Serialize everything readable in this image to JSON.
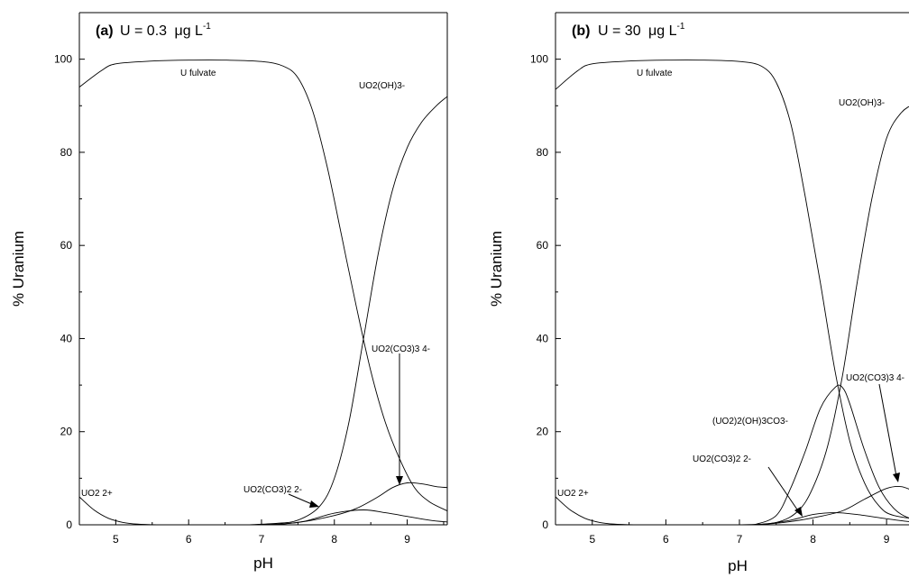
{
  "chart_data": [
    {
      "type": "line",
      "title": "(a)",
      "title_formula_text": "U = 0.3",
      "title_formula_unit_mu": "μ",
      "title_formula_unit_rest": "g L",
      "title_formula_superscript": "-1",
      "xlabel": "pH",
      "ylabel": "% Uranium",
      "xlim": [
        4.5,
        9.55
      ],
      "ylim": [
        0,
        110
      ],
      "x_ticks": [
        5,
        6,
        7,
        8,
        9
      ],
      "y_ticks": [
        0,
        20,
        40,
        60,
        80,
        100
      ],
      "series": [
        {
          "name": "U fulvate",
          "points": [
            [
              4.5,
              94
            ],
            [
              4.8,
              97.5
            ],
            [
              5,
              99
            ],
            [
              5.5,
              99.6
            ],
            [
              6,
              99.8
            ],
            [
              6.5,
              99.8
            ],
            [
              7,
              99.5
            ],
            [
              7.3,
              98.5
            ],
            [
              7.5,
              96
            ],
            [
              7.7,
              89
            ],
            [
              7.9,
              77
            ],
            [
              8.1,
              62
            ],
            [
              8.3,
              47
            ],
            [
              8.5,
              33
            ],
            [
              8.7,
              22
            ],
            [
              8.9,
              14
            ],
            [
              9.1,
              8
            ],
            [
              9.3,
              5
            ],
            [
              9.55,
              3
            ]
          ]
        },
        {
          "name": "UO2(OH)3-",
          "points": [
            [
              6.8,
              0
            ],
            [
              7.2,
              0.3
            ],
            [
              7.5,
              1
            ],
            [
              7.8,
              4
            ],
            [
              8.0,
              10
            ],
            [
              8.2,
              22
            ],
            [
              8.4,
              40
            ],
            [
              8.6,
              58
            ],
            [
              8.8,
              72
            ],
            [
              9.0,
              81
            ],
            [
              9.2,
              86.5
            ],
            [
              9.4,
              90
            ],
            [
              9.55,
              92
            ]
          ]
        },
        {
          "name": "UO2(CO3)3 4-",
          "points": [
            [
              7.0,
              0
            ],
            [
              7.5,
              0.5
            ],
            [
              8.0,
              2
            ],
            [
              8.3,
              3.5
            ],
            [
              8.6,
              6
            ],
            [
              8.8,
              8
            ],
            [
              9.0,
              9
            ],
            [
              9.2,
              8.8
            ],
            [
              9.4,
              8.2
            ],
            [
              9.55,
              8
            ]
          ]
        },
        {
          "name": "UO2(CO3)2 2-",
          "points": [
            [
              7.2,
              0
            ],
            [
              7.6,
              0.8
            ],
            [
              8.0,
              2.5
            ],
            [
              8.4,
              3.2
            ],
            [
              8.7,
              2.6
            ],
            [
              9.0,
              1.8
            ],
            [
              9.3,
              1
            ],
            [
              9.55,
              0.6
            ]
          ]
        },
        {
          "name": "UO2 2+",
          "points": [
            [
              4.5,
              6
            ],
            [
              4.7,
              3.2
            ],
            [
              4.9,
              1.4
            ],
            [
              5.1,
              0.5
            ],
            [
              5.3,
              0.15
            ],
            [
              5.6,
              0
            ]
          ]
        }
      ],
      "annotations": [
        {
          "label": "U fulvate",
          "x": 6.0,
          "y": 97
        },
        {
          "label": "UO2(OH)3-",
          "x": 8.75,
          "y": 90
        },
        {
          "label": "UO2(CO3)3 4-",
          "x": 9.0,
          "y": 44
        },
        {
          "label": "UO2(CO3)2 2-",
          "x": 7.0,
          "y": 6
        },
        {
          "label": "UO2 2+",
          "x": 4.6,
          "y": 3
        }
      ]
    },
    {
      "type": "line",
      "title": "(b)",
      "title_formula_text": "U = 30",
      "title_formula_unit_mu": "μ",
      "title_formula_unit_rest": "g L",
      "title_formula_superscript": "-1",
      "xlabel": "pH",
      "ylabel": "% Uranium",
      "xlim": [
        4.5,
        9.55
      ],
      "ylim": [
        0,
        110
      ],
      "x_ticks": [
        5,
        6,
        7,
        8,
        9
      ],
      "y_ticks": [
        0,
        20,
        40,
        60,
        80,
        100
      ],
      "series": [
        {
          "name": "U fulvate",
          "points": [
            [
              4.5,
              93.5
            ],
            [
              4.8,
              97.5
            ],
            [
              5,
              99
            ],
            [
              5.5,
              99.6
            ],
            [
              6,
              99.8
            ],
            [
              6.5,
              99.8
            ],
            [
              7,
              99.5
            ],
            [
              7.3,
              98.5
            ],
            [
              7.5,
              95
            ],
            [
              7.7,
              86
            ],
            [
              7.9,
              70
            ],
            [
              8.1,
              52
            ],
            [
              8.3,
              33
            ],
            [
              8.5,
              18
            ],
            [
              8.7,
              9
            ],
            [
              8.9,
              4
            ],
            [
              9.1,
              2
            ],
            [
              9.55,
              1
            ]
          ]
        },
        {
          "name": "UO2(OH)3-",
          "points": [
            [
              7.0,
              0
            ],
            [
              7.5,
              0.5
            ],
            [
              7.8,
              3
            ],
            [
              8.0,
              8
            ],
            [
              8.2,
              17
            ],
            [
              8.4,
              32
            ],
            [
              8.6,
              52
            ],
            [
              8.8,
              70
            ],
            [
              9.0,
              83
            ],
            [
              9.2,
              88.5
            ],
            [
              9.4,
              90.5
            ],
            [
              9.55,
              91
            ]
          ]
        },
        {
          "name": "(UO2)2(OH)3CO3-",
          "points": [
            [
              7.2,
              0
            ],
            [
              7.5,
              2
            ],
            [
              7.7,
              8
            ],
            [
              7.9,
              16
            ],
            [
              8.1,
              25
            ],
            [
              8.3,
              29.5
            ],
            [
              8.4,
              29.5
            ],
            [
              8.5,
              26
            ],
            [
              8.7,
              16
            ],
            [
              8.9,
              8
            ],
            [
              9.1,
              3.5
            ],
            [
              9.3,
              1.5
            ],
            [
              9.55,
              0.5
            ]
          ]
        },
        {
          "name": "UO2(CO3)3 4-",
          "points": [
            [
              7.2,
              0
            ],
            [
              7.6,
              0.5
            ],
            [
              8.0,
              1.5
            ],
            [
              8.4,
              3
            ],
            [
              8.7,
              5.5
            ],
            [
              9.0,
              7.8
            ],
            [
              9.2,
              8.2
            ],
            [
              9.4,
              7
            ],
            [
              9.55,
              6
            ]
          ]
        },
        {
          "name": "UO2(CO3)2 2-",
          "points": [
            [
              7.3,
              0
            ],
            [
              7.7,
              1
            ],
            [
              8.0,
              2.2
            ],
            [
              8.3,
              2.6
            ],
            [
              8.6,
              2.2
            ],
            [
              9.0,
              1.3
            ],
            [
              9.3,
              0.7
            ],
            [
              9.55,
              0.4
            ]
          ]
        },
        {
          "name": "UO2 2+",
          "points": [
            [
              4.5,
              6
            ],
            [
              4.7,
              3.2
            ],
            [
              4.9,
              1.4
            ],
            [
              5.1,
              0.5
            ],
            [
              5.3,
              0.15
            ],
            [
              5.6,
              0
            ]
          ]
        }
      ],
      "annotations": [
        {
          "label": "U fulvate",
          "x": 6.0,
          "y": 97
        },
        {
          "label": "UO2(OH)3-",
          "x": 8.9,
          "y": 90
        },
        {
          "label": "UO2(CO3)3 4-",
          "x": 8.9,
          "y": 30
        },
        {
          "label": "(UO2)2(OH)3CO3-",
          "x": 7.4,
          "y": 22
        },
        {
          "label": "UO2(CO3)2 2-",
          "x": 7.4,
          "y": 14
        },
        {
          "label": "UO2 2+",
          "x": 4.6,
          "y": 3
        }
      ]
    }
  ]
}
